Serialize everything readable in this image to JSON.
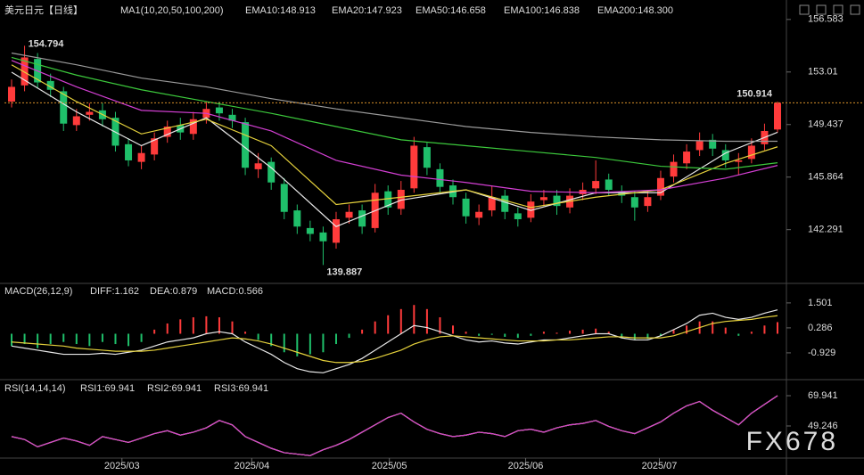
{
  "chart_data": [
    {
      "type": "candlestick",
      "title": "美元日元【日线】",
      "indicator": "MA1(10,20,50,100,200)",
      "up_color": "#ff3b3b",
      "down_color": "#1fbf6a",
      "last_line_color": "#d8902a",
      "xlim": [
        -0.55,
        59.55
      ],
      "ylim": [
        139.0,
        157.3
      ],
      "yticks": [
        156.583,
        153.01,
        149.437,
        145.864,
        142.291
      ],
      "open": [
        151.0,
        152.1,
        153.9,
        152.4,
        151.7,
        149.4,
        150.1,
        150.4,
        149.9,
        148.1,
        146.9,
        147.4,
        148.6,
        149.4,
        148.8,
        149.9,
        150.6,
        150.1,
        149.6,
        146.4,
        146.9,
        145.4,
        143.6,
        142.4,
        142.1,
        141.4,
        143.1,
        143.6,
        142.4,
        144.9,
        143.7,
        145.1,
        147.9,
        146.4,
        145.3,
        144.4,
        143.1,
        143.6,
        144.6,
        143.4,
        143.1,
        144.3,
        144.6,
        143.8,
        144.7,
        145.1,
        145.7,
        144.9,
        144.5,
        143.9,
        144.6,
        145.9,
        146.8,
        147.7,
        148.4,
        147.7,
        146.9,
        147.1,
        148.1,
        149.1
      ],
      "high": [
        152.5,
        154.794,
        154.3,
        152.9,
        152.0,
        150.5,
        150.9,
        150.9,
        150.3,
        148.5,
        148.0,
        148.9,
        149.7,
        149.9,
        150.3,
        151.0,
        151.0,
        150.5,
        149.9,
        147.5,
        147.2,
        145.8,
        144.0,
        142.9,
        142.5,
        143.5,
        144.0,
        144.0,
        145.4,
        145.3,
        145.6,
        148.6,
        148.2,
        146.8,
        145.7,
        144.8,
        144.0,
        145.3,
        145.0,
        143.8,
        144.7,
        145.0,
        145.0,
        145.1,
        145.5,
        147.0,
        146.1,
        145.3,
        144.9,
        145.0,
        146.3,
        147.4,
        148.1,
        148.9,
        148.8,
        148.1,
        147.5,
        148.5,
        149.5,
        151.0
      ],
      "low": [
        150.6,
        151.7,
        151.9,
        151.3,
        149.0,
        149.0,
        149.7,
        149.3,
        147.6,
        146.6,
        146.4,
        147.0,
        148.2,
        148.4,
        148.4,
        149.5,
        149.7,
        149.2,
        146.0,
        145.8,
        145.0,
        143.0,
        142.0,
        141.5,
        139.887,
        141.0,
        142.7,
        142.0,
        142.1,
        143.3,
        143.3,
        144.8,
        146.0,
        144.8,
        144.0,
        142.7,
        142.6,
        143.2,
        143.0,
        142.5,
        142.8,
        143.9,
        143.3,
        143.4,
        144.3,
        144.7,
        144.6,
        144.1,
        142.9,
        143.5,
        144.3,
        145.5,
        146.4,
        147.3,
        147.3,
        146.5,
        146.0,
        146.8,
        147.7,
        148.9
      ],
      "close": [
        152.0,
        154.0,
        152.3,
        151.8,
        149.5,
        150.0,
        150.3,
        149.8,
        148.0,
        147.0,
        147.5,
        148.5,
        149.3,
        148.9,
        149.8,
        150.5,
        150.2,
        149.7,
        146.5,
        146.8,
        145.5,
        143.5,
        142.5,
        142.0,
        141.5,
        143.0,
        143.5,
        142.5,
        144.8,
        143.8,
        145.0,
        148.0,
        146.5,
        145.2,
        144.5,
        143.2,
        143.5,
        144.5,
        143.5,
        143.0,
        144.2,
        144.5,
        143.9,
        144.6,
        145.0,
        145.6,
        145.0,
        144.6,
        143.8,
        144.5,
        145.8,
        146.9,
        147.6,
        148.3,
        147.8,
        147.0,
        147.0,
        148.0,
        149.0,
        150.914
      ],
      "series": [
        {
          "name": "EMA10:148.913",
          "color": "#e8e8e8",
          "x": [
            0,
            5,
            10,
            15,
            20,
            25,
            30,
            35,
            40,
            45,
            50,
            55,
            59
          ],
          "values": [
            153.0,
            150.3,
            148.0,
            149.9,
            146.5,
            142.5,
            144.3,
            145.0,
            143.6,
            144.8,
            144.8,
            147.5,
            148.913
          ]
        },
        {
          "name": "EMA20:147.923",
          "color": "#e6d23c",
          "x": [
            0,
            5,
            10,
            15,
            20,
            25,
            30,
            35,
            40,
            45,
            50,
            55,
            59
          ],
          "values": [
            153.5,
            151.0,
            148.8,
            149.8,
            148.0,
            144.0,
            144.5,
            145.0,
            143.8,
            144.5,
            145.0,
            146.8,
            147.923
          ]
        },
        {
          "name": "EMA50:146.658",
          "color": "#d33fd3",
          "x": [
            0,
            5,
            10,
            15,
            20,
            25,
            30,
            35,
            40,
            45,
            50,
            55,
            59
          ],
          "values": [
            153.8,
            152.0,
            150.4,
            150.2,
            149.0,
            147.0,
            146.0,
            145.5,
            144.9,
            144.8,
            145.0,
            145.8,
            146.658
          ]
        },
        {
          "name": "EMA100:146.838",
          "color": "#3cc93c",
          "x": [
            0,
            5,
            10,
            15,
            20,
            25,
            30,
            35,
            40,
            45,
            50,
            55,
            59
          ],
          "values": [
            154.0,
            152.8,
            151.8,
            151.0,
            150.2,
            149.3,
            148.4,
            148.0,
            147.6,
            147.2,
            146.6,
            146.4,
            146.838
          ]
        },
        {
          "name": "EMA200:148.300",
          "color": "#9a9a9a",
          "x": [
            0,
            5,
            10,
            15,
            20,
            25,
            30,
            35,
            40,
            45,
            50,
            55,
            59
          ],
          "values": [
            154.3,
            153.5,
            152.6,
            152.0,
            151.2,
            150.5,
            149.9,
            149.3,
            148.9,
            148.6,
            148.4,
            148.3,
            148.3
          ]
        }
      ]
    },
    {
      "type": "macd",
      "title": "MACD(26,12,9)",
      "up_color": "#ff3b3b",
      "down_color": "#1fbf6a",
      "xlim": [
        -0.55,
        59.55
      ],
      "ylim": [
        -2.19,
        1.93
      ],
      "yticks": [
        1.501,
        0.286,
        -0.929
      ],
      "histogram": {
        "name": "MACD:0.566",
        "color": "#d33fd3",
        "values": [
          -0.6,
          -0.5,
          -0.7,
          -0.5,
          -0.4,
          -0.5,
          -0.6,
          -0.4,
          -0.5,
          -0.6,
          -0.4,
          0.2,
          0.5,
          0.7,
          0.8,
          0.85,
          0.8,
          0.6,
          0.1,
          -0.3,
          -0.6,
          -0.9,
          -1.1,
          -1.0,
          -0.9,
          -0.5,
          -0.2,
          0.2,
          0.6,
          0.9,
          1.2,
          1.4,
          1.2,
          0.8,
          0.4,
          0.1,
          -0.1,
          -0.05,
          -0.15,
          -0.2,
          -0.1,
          0.1,
          0.05,
          0.15,
          0.2,
          0.25,
          0.1,
          -0.2,
          -0.3,
          -0.25,
          -0.1,
          0.2,
          0.4,
          0.6,
          0.6,
          0.3,
          -0.1,
          0.1,
          0.4,
          0.566
        ]
      },
      "series": [
        {
          "name": "DIFF:1.162",
          "color": "#e8e8e8",
          "values": [
            -0.6,
            -0.7,
            -0.8,
            -0.9,
            -1.0,
            -1.0,
            -1.0,
            -0.95,
            -1.0,
            -0.9,
            -0.8,
            -0.6,
            -0.4,
            -0.3,
            -0.2,
            0.0,
            0.1,
            0.0,
            -0.4,
            -0.7,
            -1.0,
            -1.4,
            -1.7,
            -1.85,
            -1.9,
            -1.7,
            -1.5,
            -1.2,
            -0.8,
            -0.4,
            0.0,
            0.4,
            0.3,
            0.1,
            -0.1,
            -0.3,
            -0.4,
            -0.35,
            -0.45,
            -0.5,
            -0.4,
            -0.3,
            -0.3,
            -0.2,
            -0.1,
            0.0,
            0.0,
            -0.2,
            -0.3,
            -0.3,
            -0.1,
            0.2,
            0.5,
            0.9,
            1.0,
            0.8,
            0.7,
            0.8,
            1.0,
            1.162
          ]
        },
        {
          "name": "DEA:0.879",
          "color": "#e6d23c",
          "values": [
            -0.4,
            -0.45,
            -0.5,
            -0.55,
            -0.6,
            -0.7,
            -0.75,
            -0.8,
            -0.85,
            -0.85,
            -0.85,
            -0.8,
            -0.7,
            -0.6,
            -0.5,
            -0.4,
            -0.3,
            -0.2,
            -0.25,
            -0.35,
            -0.5,
            -0.7,
            -0.9,
            -1.1,
            -1.3,
            -1.4,
            -1.4,
            -1.35,
            -1.2,
            -1.0,
            -0.8,
            -0.5,
            -0.3,
            -0.15,
            -0.1,
            -0.15,
            -0.2,
            -0.25,
            -0.3,
            -0.35,
            -0.35,
            -0.35,
            -0.3,
            -0.3,
            -0.25,
            -0.2,
            -0.15,
            -0.15,
            -0.2,
            -0.2,
            -0.2,
            -0.1,
            0.1,
            0.3,
            0.5,
            0.6,
            0.65,
            0.7,
            0.8,
            0.879
          ]
        }
      ]
    },
    {
      "type": "line",
      "title": "RSI(14,14,14)",
      "xlim": [
        -0.55,
        59.55
      ],
      "ylim": [
        27.3,
        79.7
      ],
      "yticks": [
        69.941,
        49.246
      ],
      "xticks": [
        {
          "value": 8.5,
          "label": "2025/03"
        },
        {
          "value": 18.5,
          "label": "2025/04"
        },
        {
          "value": 29.1,
          "label": "2025/05"
        },
        {
          "value": 39.6,
          "label": "2025/06"
        },
        {
          "value": 49.9,
          "label": "2025/07"
        }
      ],
      "series": [
        {
          "name": "RSI1:69.941",
          "color": "#e8e8e8",
          "values": [
            42,
            40,
            35,
            38,
            41,
            39,
            36,
            42,
            40,
            38,
            41,
            44,
            46,
            43,
            45,
            48,
            53,
            50,
            42,
            38,
            34,
            31,
            30,
            29,
            33,
            36,
            40,
            45,
            50,
            55,
            58,
            52,
            47,
            44,
            42,
            43,
            45,
            44,
            42,
            46,
            47,
            45,
            48,
            50,
            51,
            53,
            49,
            46,
            44,
            48,
            52,
            58,
            63,
            66,
            60,
            55,
            50,
            58,
            64,
            69.941
          ]
        },
        {
          "name": "RSI2:69.941",
          "color": "#e6d23c",
          "values": [
            42,
            40,
            35,
            38,
            41,
            39,
            36,
            42,
            40,
            38,
            41,
            44,
            46,
            43,
            45,
            48,
            53,
            50,
            42,
            38,
            34,
            31,
            30,
            29,
            33,
            36,
            40,
            45,
            50,
            55,
            58,
            52,
            47,
            44,
            42,
            43,
            45,
            44,
            42,
            46,
            47,
            45,
            48,
            50,
            51,
            53,
            49,
            46,
            44,
            48,
            52,
            58,
            63,
            66,
            60,
            55,
            50,
            58,
            64,
            69.941
          ]
        },
        {
          "name": "RSI3:69.941",
          "color": "#d33fd3",
          "values": [
            42,
            40,
            35,
            38,
            41,
            39,
            36,
            42,
            40,
            38,
            41,
            44,
            46,
            43,
            45,
            48,
            53,
            50,
            42,
            38,
            34,
            31,
            30,
            29,
            33,
            36,
            40,
            45,
            50,
            55,
            58,
            52,
            47,
            44,
            42,
            43,
            45,
            44,
            42,
            46,
            47,
            45,
            48,
            50,
            51,
            53,
            49,
            46,
            44,
            48,
            52,
            58,
            63,
            66,
            60,
            55,
            50,
            58,
            64,
            69.941
          ]
        }
      ]
    }
  ],
  "watermark": "FX678"
}
